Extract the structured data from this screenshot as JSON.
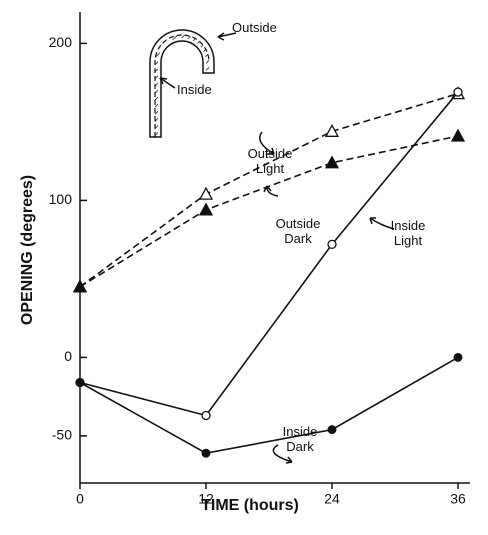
{
  "chart_data": {
    "type": "line",
    "x_label": "TIME (hours)",
    "y_label": "OPENING (degrees)",
    "x": [
      0,
      12,
      24,
      36
    ],
    "xlim": [
      0,
      37
    ],
    "ylim": [
      -80,
      220
    ],
    "xticks": [
      0,
      12,
      24,
      36
    ],
    "yticks": [
      -50,
      0,
      100,
      200
    ],
    "annotations": [
      "Outside",
      "Inside"
    ],
    "series": [
      {
        "name": "Outside Light",
        "color": "#111111",
        "dashed": true,
        "marker": "triangle-open",
        "values": [
          45,
          104,
          144,
          168
        ]
      },
      {
        "name": "Outside Dark",
        "color": "#111111",
        "dashed": true,
        "marker": "triangle-filled",
        "values": [
          45,
          94,
          124,
          141
        ]
      },
      {
        "name": "Inside Light",
        "color": "#111111",
        "dashed": false,
        "marker": "circle-open",
        "values": [
          -16,
          -37,
          72,
          169
        ]
      },
      {
        "name": "Inside Dark",
        "color": "#111111",
        "dashed": false,
        "marker": "circle-filled",
        "values": [
          -16,
          -61,
          -46,
          0
        ]
      }
    ]
  }
}
